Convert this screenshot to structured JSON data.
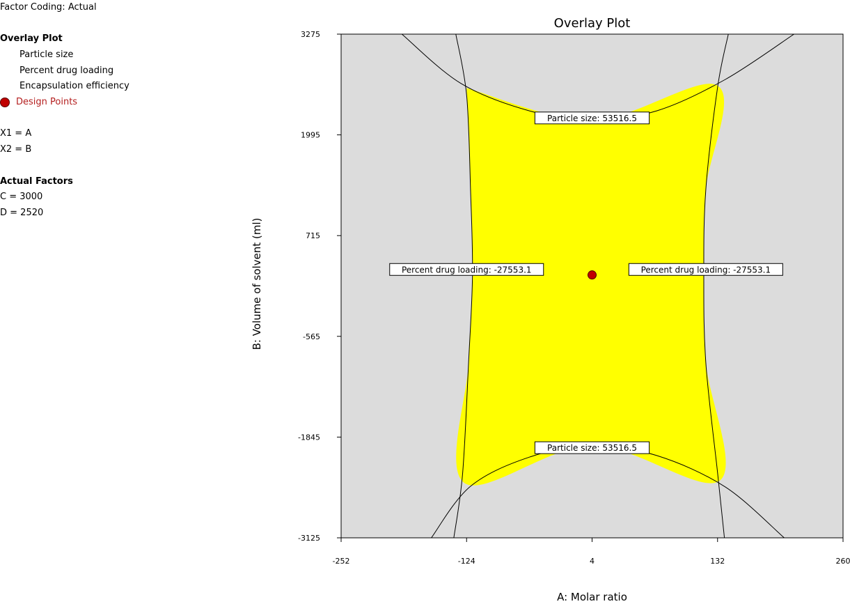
{
  "sidebar": {
    "factor_coding": "Factor Coding: Actual",
    "section_title": "Overlay Plot",
    "responses": [
      "Particle size",
      "Percent drug loading",
      "Encapsulation efficiency"
    ],
    "design_points_label": "Design Points",
    "x1": "X1 = A",
    "x2": "X2 = B",
    "actual_factors_title": "Actual Factors",
    "factor_c": "C = 3000",
    "factor_d": "D = 2520"
  },
  "colors": {
    "feasible": "#ffff00",
    "infeasible": "#dcdcdc",
    "design_point": "#c00000",
    "label_text": "#b41e1e"
  },
  "chart_data": {
    "type": "contour-overlay",
    "title": "Overlay Plot",
    "xlabel": "A: Molar ratio",
    "ylabel": "B: Volume of solvent (ml)",
    "xlim": [
      -252,
      260
    ],
    "ylim": [
      -3125,
      3275
    ],
    "xticks": [
      -252,
      -124,
      4,
      132,
      260
    ],
    "yticks": [
      3275,
      1995,
      715,
      -565,
      -1845,
      -3125
    ],
    "design_points": [
      {
        "x": 4,
        "y": 215
      }
    ],
    "contours": [
      {
        "response": "Particle size",
        "value": 53516.5,
        "label": "Particle size: 53516.5"
      },
      {
        "response": "Percent drug loading",
        "value": -27553.1,
        "label": "Percent drug loading: -27553.1"
      }
    ],
    "contour_labels": [
      {
        "text": "Particle size: 53516.5",
        "x": 4,
        "y": 2210
      },
      {
        "text": "Percent drug loading: -27553.1",
        "x": -124,
        "y": 285
      },
      {
        "text": "Percent drug loading: -27553.1",
        "x": 120,
        "y": 285
      },
      {
        "text": "Particle size: 53516.5",
        "x": 4,
        "y": -1980
      }
    ],
    "feasible_region": {
      "vertices": [
        [
          -124,
          2590
        ],
        [
          4,
          2180
        ],
        [
          132,
          2620
        ],
        [
          120,
          1300
        ],
        [
          118,
          215
        ],
        [
          120,
          -900
        ],
        [
          134,
          -2400
        ],
        [
          4,
          -1950
        ],
        [
          -126,
          -2430
        ],
        [
          -122,
          -900
        ],
        [
          -118,
          215
        ],
        [
          -120,
          1300
        ]
      ]
    },
    "curves": {
      "particle_top": [
        [
          -190,
          3275
        ],
        [
          -130,
          2650
        ],
        [
          -60,
          2300
        ],
        [
          4,
          2180
        ],
        [
          70,
          2300
        ],
        [
          140,
          2700
        ],
        [
          210,
          3275
        ]
      ],
      "particle_bottom": [
        [
          -160,
          -3125
        ],
        [
          -120,
          -2470
        ],
        [
          -60,
          -2100
        ],
        [
          4,
          -1950
        ],
        [
          70,
          -2080
        ],
        [
          140,
          -2480
        ],
        [
          200,
          -3125
        ]
      ],
      "loading_left": [
        [
          -135,
          3275
        ],
        [
          -124,
          2500
        ],
        [
          -120,
          1300
        ],
        [
          -118,
          215
        ],
        [
          -122,
          -900
        ],
        [
          -128,
          -2300
        ],
        [
          -137,
          -3125
        ]
      ],
      "loading_right": [
        [
          143,
          3275
        ],
        [
          132,
          2600
        ],
        [
          120,
          1300
        ],
        [
          118,
          215
        ],
        [
          120,
          -900
        ],
        [
          132,
          -2300
        ],
        [
          139,
          -3125
        ]
      ]
    }
  }
}
